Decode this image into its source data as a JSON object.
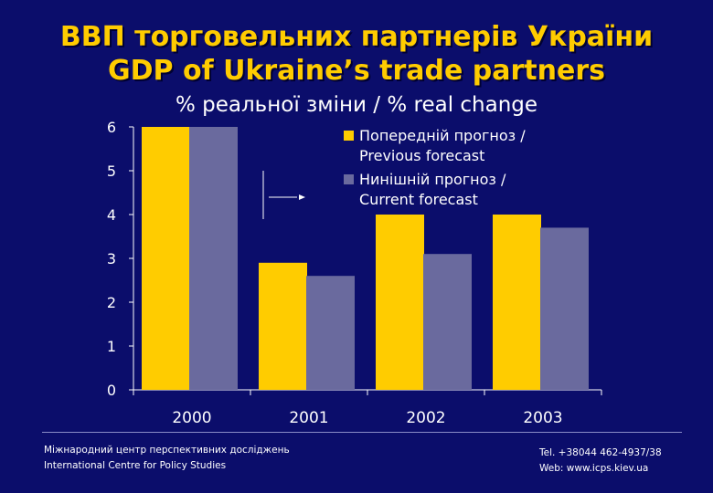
{
  "header": {
    "title_ua": "ВВП торговельних партнерів України",
    "title_en": "GDP of Ukraine’s trade partners",
    "subtitle": "% реальної зміни / % real change"
  },
  "footer": {
    "org_ua": "Міжнародний центр перспективних досліджень",
    "org_en": "International Centre for Policy Studies",
    "tel": "Tel. +38044 462-4937/38",
    "web": "Web: www.icps.kiev.ua"
  },
  "colors": {
    "background": "#0b0d6b",
    "title": "#ffcc00",
    "previous": "#ffcc00",
    "current": "#6a6a9e",
    "text": "#ffffff"
  },
  "chart_data": {
    "type": "bar",
    "title": "% реальної зміни / % real change",
    "categories": [
      "2000",
      "2001",
      "2002",
      "2003"
    ],
    "series": [
      {
        "name": "Попередній прогноз / Previous forecast",
        "legend_lines": [
          "Попередній прогноз /",
          "Previous forecast"
        ],
        "values": [
          6.0,
          2.9,
          4.0,
          4.0
        ]
      },
      {
        "name": "Нинішній прогноз / Current forecast",
        "legend_lines": [
          "Нинішній прогноз /",
          "Current forecast"
        ],
        "values": [
          6.0,
          2.6,
          3.1,
          3.7
        ]
      }
    ],
    "yticks": [
      0,
      1,
      2,
      3,
      4,
      5,
      6
    ],
    "ylim": [
      0,
      6
    ],
    "xlabel": "",
    "ylabel": "",
    "legend_position": "top-right",
    "grid": false
  }
}
